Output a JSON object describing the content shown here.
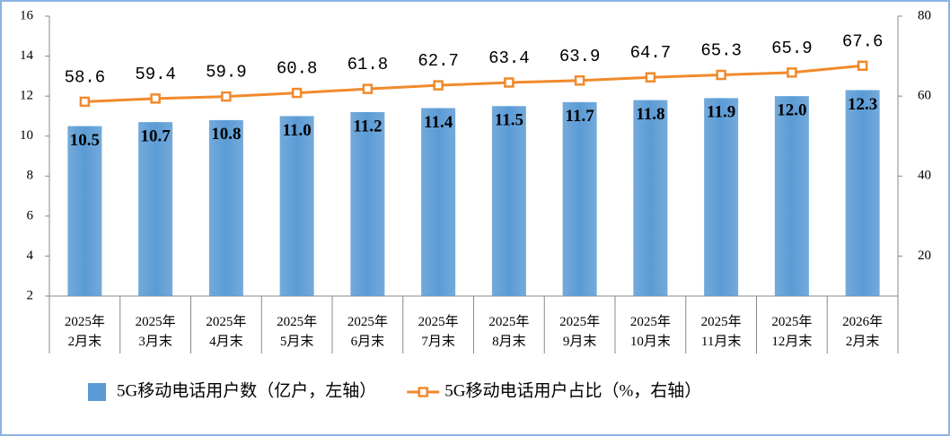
{
  "chart_data": {
    "type": "bar-line",
    "categories": [
      "2025年\n2月末",
      "2025年\n3月末",
      "2025年\n4月末",
      "2025年\n5月末",
      "2025年\n6月末",
      "2025年\n7月末",
      "2025年\n8月末",
      "2025年\n9月末",
      "2025年\n10月末",
      "2025年\n11月末",
      "2025年\n12月末",
      "2026年\n2月末"
    ],
    "series": [
      {
        "name": "5G移动电话用户数（亿户，左轴）",
        "type": "bar",
        "color": "#5b9bd5",
        "values": [
          10.5,
          10.7,
          10.8,
          11.0,
          11.2,
          11.4,
          11.5,
          11.7,
          11.8,
          11.9,
          12.0,
          12.3
        ],
        "value_labels": [
          "10.5",
          "10.7",
          "10.8",
          "11.0",
          "11.2",
          "11.4",
          "11.5",
          "11.7",
          "11.8",
          "11.9",
          "12.0",
          "12.3"
        ]
      },
      {
        "name": "5G移动电话用户占比（%，右轴）",
        "type": "line",
        "axis": "y2",
        "color": "#f08a2c",
        "values": [
          58.6,
          59.4,
          59.9,
          60.8,
          61.8,
          62.7,
          63.4,
          63.9,
          64.7,
          65.3,
          65.9,
          67.6
        ]
      }
    ],
    "ylim": [
      2,
      16
    ],
    "yticks": [
      2,
      4,
      6,
      8,
      10,
      12,
      14,
      16
    ],
    "y2lim": [
      10,
      80
    ],
    "y2ticks": [
      20,
      40,
      60,
      80
    ],
    "legend": "bottom"
  }
}
